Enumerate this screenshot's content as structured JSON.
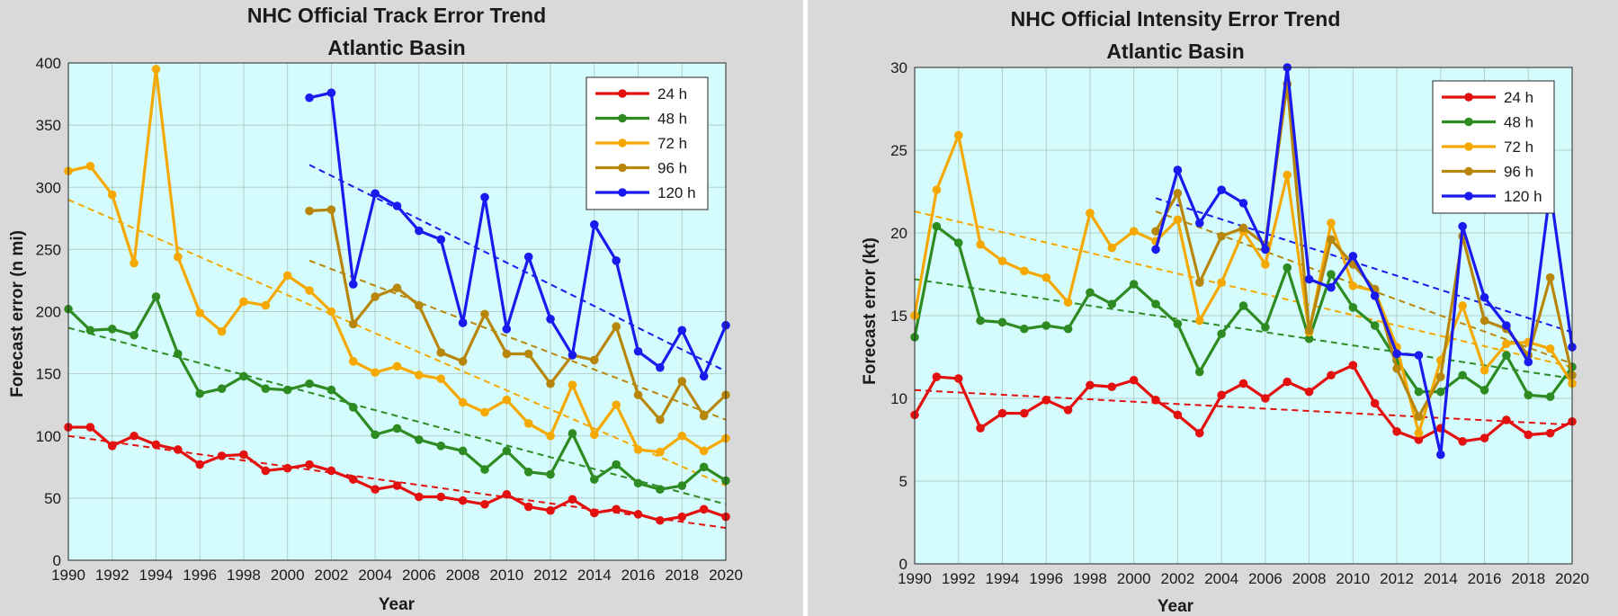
{
  "colors": {
    "background": "#d9d9d9",
    "plot_background": "#d4fcfc",
    "grid": "#aab8b8",
    "24 h": "#e31010",
    "48 h": "#2e8b22",
    "72 h": "#f5a800",
    "96 h": "#b8860b",
    "120 h": "#1a1aee"
  },
  "chart_data": [
    {
      "type": "line",
      "title": "NHC Official Track Error Trend",
      "subtitle": "Atlantic Basin",
      "xlabel": "Year",
      "ylabel": "Forecast error (n mi)",
      "xlim": [
        1990,
        2020
      ],
      "ylim": [
        0,
        400
      ],
      "xticks": [
        "1990",
        "1992",
        "1994",
        "1996",
        "1998",
        "2000",
        "2002",
        "2004",
        "2006",
        "2008",
        "2010",
        "2012",
        "2014",
        "2016",
        "2018",
        "2020"
      ],
      "yticks": [
        "0",
        "50",
        "100",
        "150",
        "200",
        "250",
        "300",
        "350",
        "400"
      ],
      "grid": true,
      "legend_position": "top-right",
      "series": [
        {
          "name": "24 h",
          "x_start": 1990,
          "values": [
            107,
            107,
            92,
            100,
            93,
            89,
            77,
            84,
            85,
            72,
            74,
            77,
            72,
            65,
            57,
            60,
            51,
            51,
            48,
            45,
            53,
            43,
            40,
            49,
            38,
            41,
            37,
            32,
            35,
            41,
            35
          ],
          "trend": [
            [
              1990,
              100
            ],
            [
              2020,
              26
            ]
          ]
        },
        {
          "name": "48 h",
          "x_start": 1990,
          "values": [
            202,
            185,
            186,
            181,
            212,
            166,
            134,
            138,
            148,
            138,
            137,
            142,
            137,
            123,
            101,
            106,
            97,
            92,
            88,
            73,
            88,
            71,
            69,
            102,
            65,
            77,
            62,
            57,
            60,
            75,
            64
          ],
          "trend": [
            [
              1990,
              187
            ],
            [
              2020,
              45
            ]
          ]
        },
        {
          "name": "72 h",
          "x_start": 1990,
          "values": [
            313,
            317,
            294,
            239,
            395,
            244,
            199,
            184,
            208,
            205,
            229,
            217,
            200,
            160,
            151,
            156,
            149,
            146,
            127,
            119,
            129,
            110,
            100,
            141,
            101,
            125,
            89,
            87,
            100,
            88,
            98
          ],
          "trend": [
            [
              1990,
              290
            ],
            [
              2020,
              60
            ]
          ]
        },
        {
          "name": "96 h",
          "x_start": 2001,
          "values": [
            281,
            282,
            190,
            212,
            219,
            205,
            167,
            160,
            198,
            166,
            166,
            142,
            165,
            161,
            188,
            133,
            113,
            144,
            116,
            133
          ],
          "trend": [
            [
              2001,
              241
            ],
            [
              2020,
              113
            ]
          ]
        },
        {
          "name": "120 h",
          "x_start": 2001,
          "values": [
            372,
            376,
            222,
            295,
            285,
            265,
            258,
            191,
            292,
            186,
            244,
            194,
            165,
            270,
            241,
            168,
            155,
            185,
            148,
            189
          ],
          "trend": [
            [
              2001,
              318
            ],
            [
              2020,
              152
            ]
          ]
        }
      ]
    },
    {
      "type": "line",
      "title": "NHC Official Intensity Error Trend",
      "subtitle": "Atlantic Basin",
      "xlabel": "Year",
      "ylabel": "Forecast error (kt)",
      "xlim": [
        1990,
        2020
      ],
      "ylim": [
        0,
        30
      ],
      "xticks": [
        "1990",
        "1992",
        "1994",
        "1996",
        "1998",
        "2000",
        "2002",
        "2004",
        "2006",
        "2008",
        "2010",
        "2012",
        "2014",
        "2016",
        "2018",
        "2020"
      ],
      "yticks": [
        "0",
        "5",
        "10",
        "15",
        "20",
        "25",
        "30"
      ],
      "grid": true,
      "legend_position": "top-right",
      "series": [
        {
          "name": "24 h",
          "x_start": 1990,
          "values": [
            9.0,
            11.3,
            11.2,
            8.2,
            9.1,
            9.1,
            9.9,
            9.3,
            10.8,
            10.7,
            11.1,
            9.9,
            9.0,
            7.9,
            10.2,
            10.9,
            10.0,
            11.0,
            10.4,
            11.4,
            12.0,
            9.7,
            8.0,
            7.5,
            8.2,
            7.4,
            7.6,
            8.7,
            7.8,
            7.9,
            8.6
          ],
          "trend": [
            [
              1990,
              10.5
            ],
            [
              2020,
              8.4
            ]
          ]
        },
        {
          "name": "48 h",
          "x_start": 1990,
          "values": [
            13.7,
            20.4,
            19.4,
            14.7,
            14.6,
            14.2,
            14.4,
            14.2,
            16.4,
            15.7,
            16.9,
            15.7,
            14.5,
            11.6,
            13.9,
            15.6,
            14.3,
            17.9,
            13.6,
            17.5,
            15.5,
            14.4,
            12.3,
            10.4,
            10.4,
            11.4,
            10.5,
            12.6,
            10.2,
            10.1,
            11.9
          ],
          "trend": [
            [
              1990,
              17.2
            ],
            [
              2020,
              11.2
            ]
          ]
        },
        {
          "name": "72 h",
          "x_start": 1990,
          "values": [
            15.0,
            22.6,
            25.9,
            19.3,
            18.3,
            17.7,
            17.3,
            15.8,
            21.2,
            19.1,
            20.1,
            19.5,
            20.8,
            14.7,
            17.0,
            20.1,
            18.1,
            23.5,
            14.0,
            20.6,
            16.8,
            16.5,
            13.1,
            7.9,
            12.3,
            15.6,
            11.7,
            13.3,
            13.4,
            13.0,
            10.9
          ],
          "trend": [
            [
              1990,
              21.3
            ],
            [
              2020,
              11.9
            ]
          ]
        },
        {
          "name": "96 h",
          "x_start": 2001,
          "values": [
            20.1,
            22.4,
            17.0,
            19.8,
            20.3,
            19.3,
            29.0,
            14.1,
            19.6,
            18.1,
            16.6,
            11.8,
            8.9,
            11.3,
            19.8,
            14.7,
            14.2,
            12.6,
            17.3,
            11.4
          ],
          "trend": [
            [
              2001,
              21.3
            ],
            [
              2020,
              12.1
            ]
          ]
        },
        {
          "name": "120 h",
          "x_start": 2001,
          "values": [
            19.0,
            23.8,
            20.6,
            22.6,
            21.8,
            19.0,
            30.0,
            17.2,
            16.7,
            18.6,
            16.2,
            12.7,
            12.6,
            6.6,
            20.4,
            16.1,
            14.4,
            12.2,
            22.6,
            13.1
          ],
          "trend": [
            [
              2001,
              22.1
            ],
            [
              2020,
              14.0
            ]
          ]
        }
      ]
    }
  ]
}
